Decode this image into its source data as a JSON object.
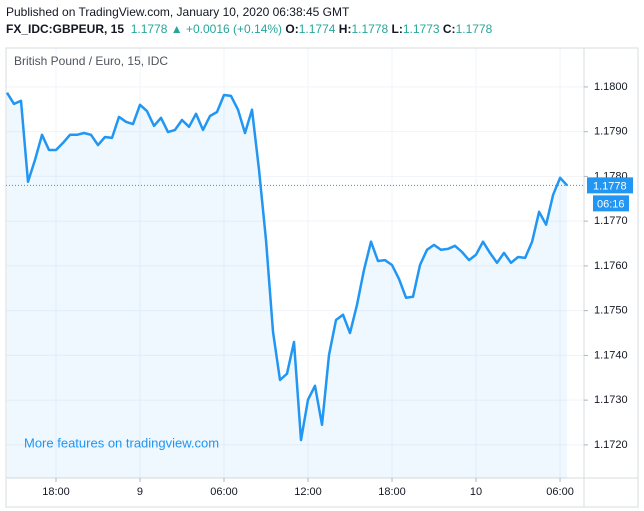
{
  "header": {
    "published": "Published on TradingView.com, January 10, 2020 06:38:45 GMT",
    "symbol": "FX_IDC:GBPEUR, 15",
    "last": "1.1778",
    "arrow": "▲",
    "change": "+0.0016 (+0.14%)",
    "open_label": "O:",
    "open": "1.1774",
    "high_label": "H:",
    "high": "1.1778",
    "low_label": "L:",
    "low": "1.1773",
    "close_label": "C:",
    "close": "1.1778"
  },
  "chart_data": {
    "type": "area-line",
    "title": "British Pound / Euro, 15, IDC",
    "watermark": "More features on tradingview.com",
    "x": [
      14.5,
      15,
      15.5,
      16,
      16.5,
      17,
      17.5,
      18,
      18.5,
      19,
      19.5,
      20,
      20.5,
      21,
      21.5,
      22,
      22.5,
      23,
      23.5,
      24,
      24.5,
      25,
      25.5,
      26,
      26.5,
      27,
      27.5,
      28,
      28.5,
      29,
      29.5,
      30,
      30.5,
      31,
      31.5,
      32,
      32.5,
      33,
      33.5,
      34,
      34.5,
      35,
      35.5,
      36,
      36.5,
      37,
      37.5,
      38,
      38.5,
      39,
      39.5,
      40,
      40.5,
      41,
      41.5,
      42,
      42.5,
      43,
      43.5,
      44,
      44.5,
      45,
      45.5,
      46,
      46.5,
      47,
      47.5,
      48,
      48.5,
      49,
      49.5,
      50,
      50.5,
      51,
      51.5,
      52,
      52.5,
      53,
      53.5,
      54,
      54.5
    ],
    "series": [
      {
        "name": "GBPEUR",
        "color": "#2196f3",
        "values": [
          1.17987,
          1.17962,
          1.17969,
          1.17788,
          1.17837,
          1.17893,
          1.17859,
          1.17859,
          1.17875,
          1.17893,
          1.17893,
          1.17897,
          1.17893,
          1.1787,
          1.17888,
          1.17886,
          1.17933,
          1.17922,
          1.17917,
          1.1796,
          1.17946,
          1.17913,
          1.17931,
          1.17899,
          1.17904,
          1.17926,
          1.17911,
          1.1794,
          1.17904,
          1.17935,
          1.17944,
          1.17982,
          1.1798,
          1.17949,
          1.17897,
          1.17949,
          1.17815,
          1.17658,
          1.17453,
          1.17345,
          1.17359,
          1.1743,
          1.17211,
          1.17301,
          1.17332,
          1.17245,
          1.17401,
          1.17479,
          1.17491,
          1.1745,
          1.17513,
          1.17591,
          1.17654,
          1.17611,
          1.17613,
          1.17602,
          1.17571,
          1.17529,
          1.17531,
          1.17602,
          1.17636,
          1.17647,
          1.17636,
          1.17638,
          1.17645,
          1.17631,
          1.17613,
          1.17625,
          1.17654,
          1.17629,
          1.17607,
          1.17629,
          1.17607,
          1.1762,
          1.17618,
          1.17654,
          1.17721,
          1.17692,
          1.17759,
          1.17797,
          1.1778
        ]
      }
    ],
    "last_price": 1.1778,
    "last_time": "06:16",
    "xlim": [
      14.43,
      55.71
    ],
    "ylim": [
      1.17126,
      1.18087
    ],
    "xticks": [
      {
        "value": 18,
        "label": "18:00"
      },
      {
        "value": 24,
        "label": "9"
      },
      {
        "value": 30,
        "label": "06:00"
      },
      {
        "value": 36,
        "label": "12:00"
      },
      {
        "value": 42,
        "label": "18:00"
      },
      {
        "value": 48,
        "label": "10"
      },
      {
        "value": 54,
        "label": "06:00"
      }
    ],
    "yticks": [
      {
        "value": 1.172,
        "label": "1.1720"
      },
      {
        "value": 1.173,
        "label": "1.1730"
      },
      {
        "value": 1.174,
        "label": "1.1740"
      },
      {
        "value": 1.175,
        "label": "1.1750"
      },
      {
        "value": 1.176,
        "label": "1.1760"
      },
      {
        "value": 1.177,
        "label": "1.1770"
      },
      {
        "value": 1.178,
        "label": "1.1780"
      },
      {
        "value": 1.179,
        "label": "1.1790"
      },
      {
        "value": 1.18,
        "label": "1.1800"
      }
    ],
    "grid": true
  }
}
